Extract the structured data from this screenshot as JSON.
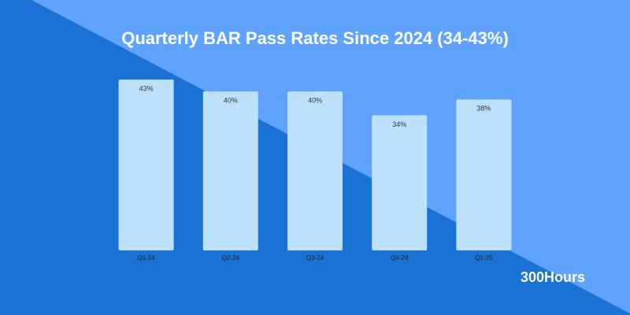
{
  "chart_data": {
    "type": "bar",
    "title": "Quarterly BAR Pass Rates Since 2024 (34-43%)",
    "categories": [
      "Q1-24",
      "Q2-24",
      "Q3-24",
      "Q4-24",
      "Q1-25"
    ],
    "values": [
      43,
      40,
      40,
      34,
      38
    ],
    "value_labels": [
      "43%",
      "40%",
      "40%",
      "34%",
      "38%"
    ],
    "color": "#bde0fb"
  },
  "brand": "300Hours"
}
